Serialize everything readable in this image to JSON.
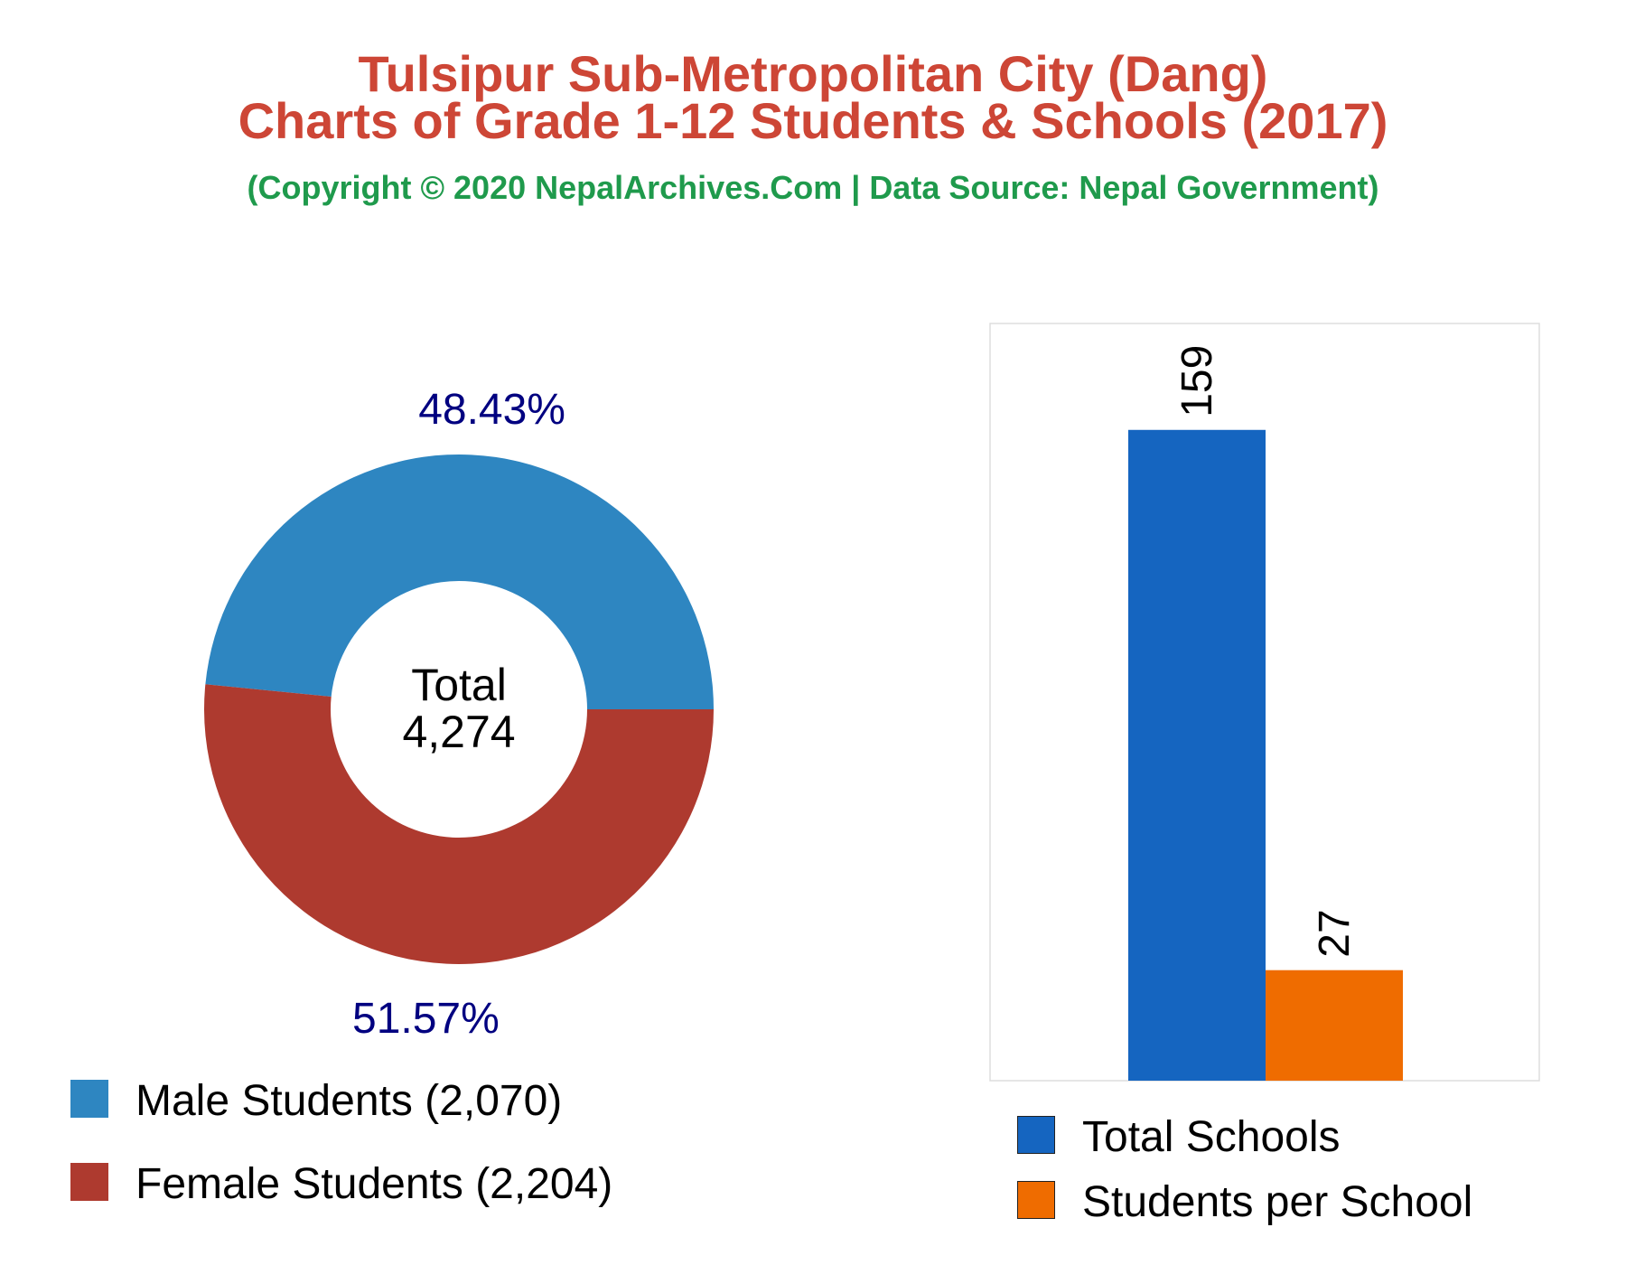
{
  "header": {
    "title_line1": "Tulsipur Sub-Metropolitan City (Dang)",
    "title_line2": "Charts of Grade 1-12 Students & Schools (2017)",
    "subtitle": "(Copyright © 2020 NepalArchives.Com | Data Source: Nepal Government)"
  },
  "colors": {
    "title": "#cd4636",
    "subtitle": "#1f9a4c",
    "male": "#2e86c1",
    "female": "#ae3a2f",
    "schools": "#1565c0",
    "students_per_school": "#ef6c00",
    "pct_label": "#000080"
  },
  "chart_data": [
    {
      "type": "pie",
      "style": "donut",
      "center_label": [
        "Total",
        "4,274"
      ],
      "slices": [
        {
          "name": "Male Students",
          "value": 2070,
          "percent_label": "48.43%",
          "legend": "Male Students (2,070)"
        },
        {
          "name": "Female Students",
          "value": 2204,
          "percent_label": "51.57%",
          "legend": "Female Students (2,204)"
        }
      ],
      "legend_placement": "bottom-left"
    },
    {
      "type": "bar",
      "categories": [
        "Total Schools",
        "Students per School"
      ],
      "values": [
        159,
        27
      ],
      "value_labels": [
        "159",
        "27"
      ],
      "ylim": [
        0,
        185
      ],
      "grid": false,
      "legend_placement": "bottom"
    }
  ]
}
